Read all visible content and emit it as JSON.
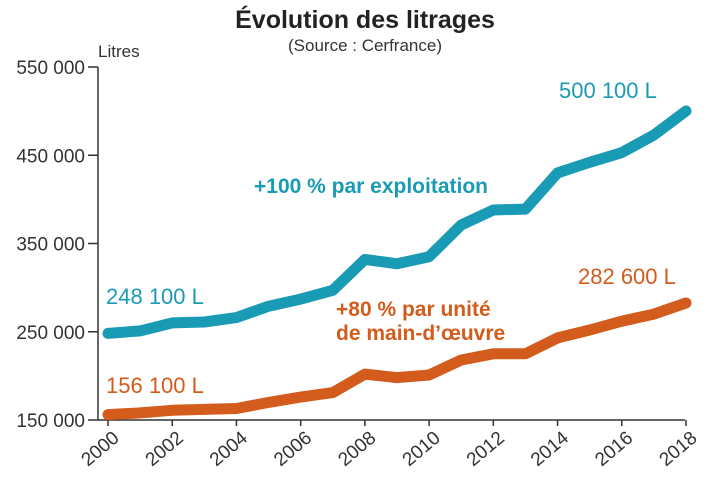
{
  "chart_data": {
    "type": "line",
    "title": "Évolution des litrages",
    "subtitle": "(Source : Cerfrance)",
    "ylabel": "Litres",
    "xlabel": "",
    "ylim": [
      150000,
      550000
    ],
    "yticks": [
      150000,
      250000,
      350000,
      450000,
      550000
    ],
    "ytick_labels": [
      "150 000",
      "250 000",
      "350 000",
      "450 000",
      "550 000"
    ],
    "xlim": [
      2000,
      2018
    ],
    "xticks": [
      2000,
      2002,
      2004,
      2006,
      2008,
      2010,
      2012,
      2014,
      2016,
      2018
    ],
    "xtick_labels": [
      "2000",
      "2002",
      "2004",
      "2006",
      "2008",
      "2010",
      "2012",
      "2014",
      "2016",
      "2018"
    ],
    "grid": false,
    "legend": "none",
    "x": [
      2000,
      2001,
      2002,
      2003,
      2004,
      2005,
      2006,
      2007,
      2008,
      2009,
      2010,
      2011,
      2012,
      2013,
      2014,
      2015,
      2016,
      2017,
      2018
    ],
    "series": [
      {
        "name": "",
        "color": "#1a9bb5",
        "values": [
          248100,
          251000,
          260000,
          261000,
          266000,
          279000,
          287000,
          297000,
          332000,
          327000,
          335000,
          371000,
          388000,
          389000,
          430000,
          442000,
          453000,
          473000,
          500100
        ]
      },
      {
        "name": "",
        "color": "#d35b1b",
        "values": [
          156100,
          158000,
          161000,
          162000,
          163000,
          170000,
          176000,
          181000,
          202000,
          198000,
          201000,
          218000,
          225000,
          225000,
          243000,
          252000,
          262000,
          270000,
          282600
        ]
      }
    ],
    "annotations": [
      {
        "text": "+100 % par exploitation",
        "color": "#1a9bb5"
      },
      {
        "text": "+80 % par unité",
        "color": "#d35b1b"
      },
      {
        "text": "de main-d’œuvre",
        "color": "#d35b1b"
      }
    ],
    "data_labels": [
      {
        "text": "248 100 L",
        "color": "#1a9bb5"
      },
      {
        "text": "500 100 L",
        "color": "#1a9bb5"
      },
      {
        "text": "156 100 L",
        "color": "#d35b1b"
      },
      {
        "text": "282 600 L",
        "color": "#d35b1b"
      }
    ]
  }
}
